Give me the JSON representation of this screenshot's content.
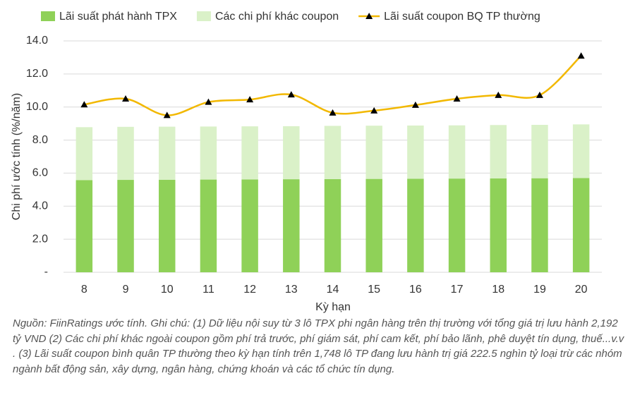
{
  "chart_data": {
    "type": "bar",
    "stacked": true,
    "y_label": "Chi phí ước tính (%/năm)",
    "x_label": "Kỳ hạn",
    "categories": [
      "8",
      "9",
      "10",
      "11",
      "12",
      "13",
      "14",
      "15",
      "16",
      "17",
      "18",
      "19",
      "20"
    ],
    "series": [
      {
        "name": "Lãi suất phát hành TPX",
        "type": "bar",
        "color": "#8fd158",
        "values": [
          5.58,
          5.59,
          5.6,
          5.61,
          5.62,
          5.63,
          5.64,
          5.65,
          5.66,
          5.67,
          5.68,
          5.69,
          5.7
        ]
      },
      {
        "name": "Các chi phí khác coupon",
        "type": "bar",
        "color": "#daf1c8",
        "values": [
          3.2,
          3.21,
          3.21,
          3.21,
          3.21,
          3.21,
          3.22,
          3.22,
          3.22,
          3.22,
          3.23,
          3.23,
          3.25
        ]
      },
      {
        "name": "Lãi suất coupon BQ TP thường",
        "type": "line",
        "color": "#f2b800",
        "marker_color": "#000000",
        "values": [
          10.15,
          10.5,
          9.5,
          10.3,
          10.45,
          10.75,
          9.65,
          9.78,
          10.12,
          10.5,
          10.72,
          10.72,
          13.1
        ]
      }
    ],
    "ylim": [
      0,
      14
    ],
    "yticks": [
      {
        "value": 0,
        "label": "-"
      },
      {
        "value": 2,
        "label": "2.0"
      },
      {
        "value": 4,
        "label": "4.0"
      },
      {
        "value": 6,
        "label": "6.0"
      },
      {
        "value": 8,
        "label": "8.0"
      },
      {
        "value": 10,
        "label": "10.0"
      },
      {
        "value": 12,
        "label": "12.0"
      },
      {
        "value": 14,
        "label": "14.0"
      }
    ],
    "grid": true,
    "note": "Nguồn: FiinRatings ước tính. Ghi chú: (1) Dữ liệu nội suy từ 3 lô TPX phi ngân hàng trên thị trường với tổng giá trị lưu hành 2,192 tỷ VND (2) Các chi phí khác ngoài coupon gồm phí trả trước, phí giám sát, phí cam kết, phí bảo lãnh, phê duyệt tín dụng, thuế...v.v . (3) Lãi suất coupon bình quân TP thường theo kỳ hạn tính trên 1,748 lô TP đang lưu hành trị giá 222.5 nghìn tỷ loại trừ các nhóm ngành bất động sản, xây dựng, ngân hàng, chứng khoán và các tổ chức tín dụng."
  }
}
